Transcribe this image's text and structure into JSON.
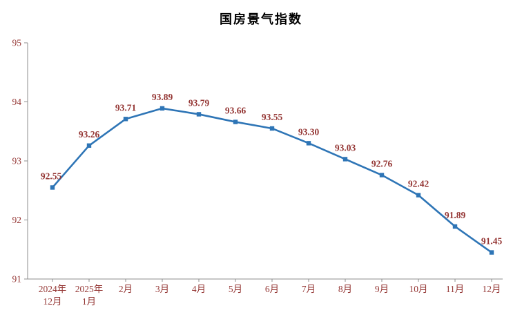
{
  "title": "国房景气指数",
  "chart_data": {
    "type": "line",
    "title": "国房景气指数",
    "categories": [
      "2024年\n12月",
      "2025年\n1月",
      "2月",
      "3月",
      "4月",
      "5月",
      "6月",
      "7月",
      "8月",
      "9月",
      "10月",
      "11月",
      "12月"
    ],
    "values": [
      92.55,
      93.26,
      93.71,
      93.89,
      93.79,
      93.66,
      93.55,
      93.3,
      93.03,
      92.76,
      92.42,
      91.89,
      91.45
    ],
    "data_labels": [
      "92.55",
      "93.26",
      "93.71",
      "93.89",
      "93.79",
      "93.66",
      "93.55",
      "93.30",
      "93.03",
      "92.76",
      "92.42",
      "91.89",
      "91.45"
    ],
    "ylim": [
      91,
      95
    ],
    "yticks": [
      95,
      94,
      93,
      92,
      91
    ],
    "xlabel": "",
    "ylabel": "",
    "grid": false,
    "legend": "none",
    "line_color": "#2e75b6",
    "marker": "square",
    "axis_color": "#8c8c8c",
    "text_color": "#953735"
  }
}
